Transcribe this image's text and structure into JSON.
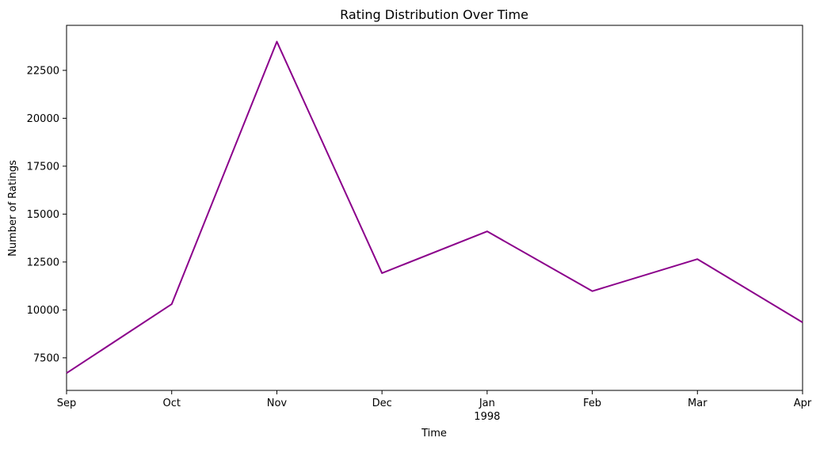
{
  "chart_data": {
    "type": "line",
    "title": "Rating Distribution Over Time",
    "xlabel": "Time",
    "ylabel": "Number of Ratings",
    "grid": false,
    "legend": false,
    "x_tick_labels": [
      "Sep",
      "Oct",
      "Nov",
      "Dec",
      "Jan",
      "Feb",
      "Mar",
      "Apr"
    ],
    "x_year_label": "1998",
    "x": [
      "1997-09",
      "1997-10",
      "1997-11",
      "1997-12",
      "1998-01",
      "1998-02",
      "1998-03",
      "1998-04"
    ],
    "series": [
      {
        "color": "#8b008b",
        "values": [
          6700,
          10300,
          24000,
          11920,
          14100,
          10980,
          12650,
          9350
        ]
      }
    ],
    "xlim": [
      "1997-09",
      "1998-04"
    ],
    "ylim": [
      5800,
      24850
    ],
    "y_ticks": [
      7500,
      10000,
      12500,
      15000,
      17500,
      20000,
      22500
    ]
  }
}
